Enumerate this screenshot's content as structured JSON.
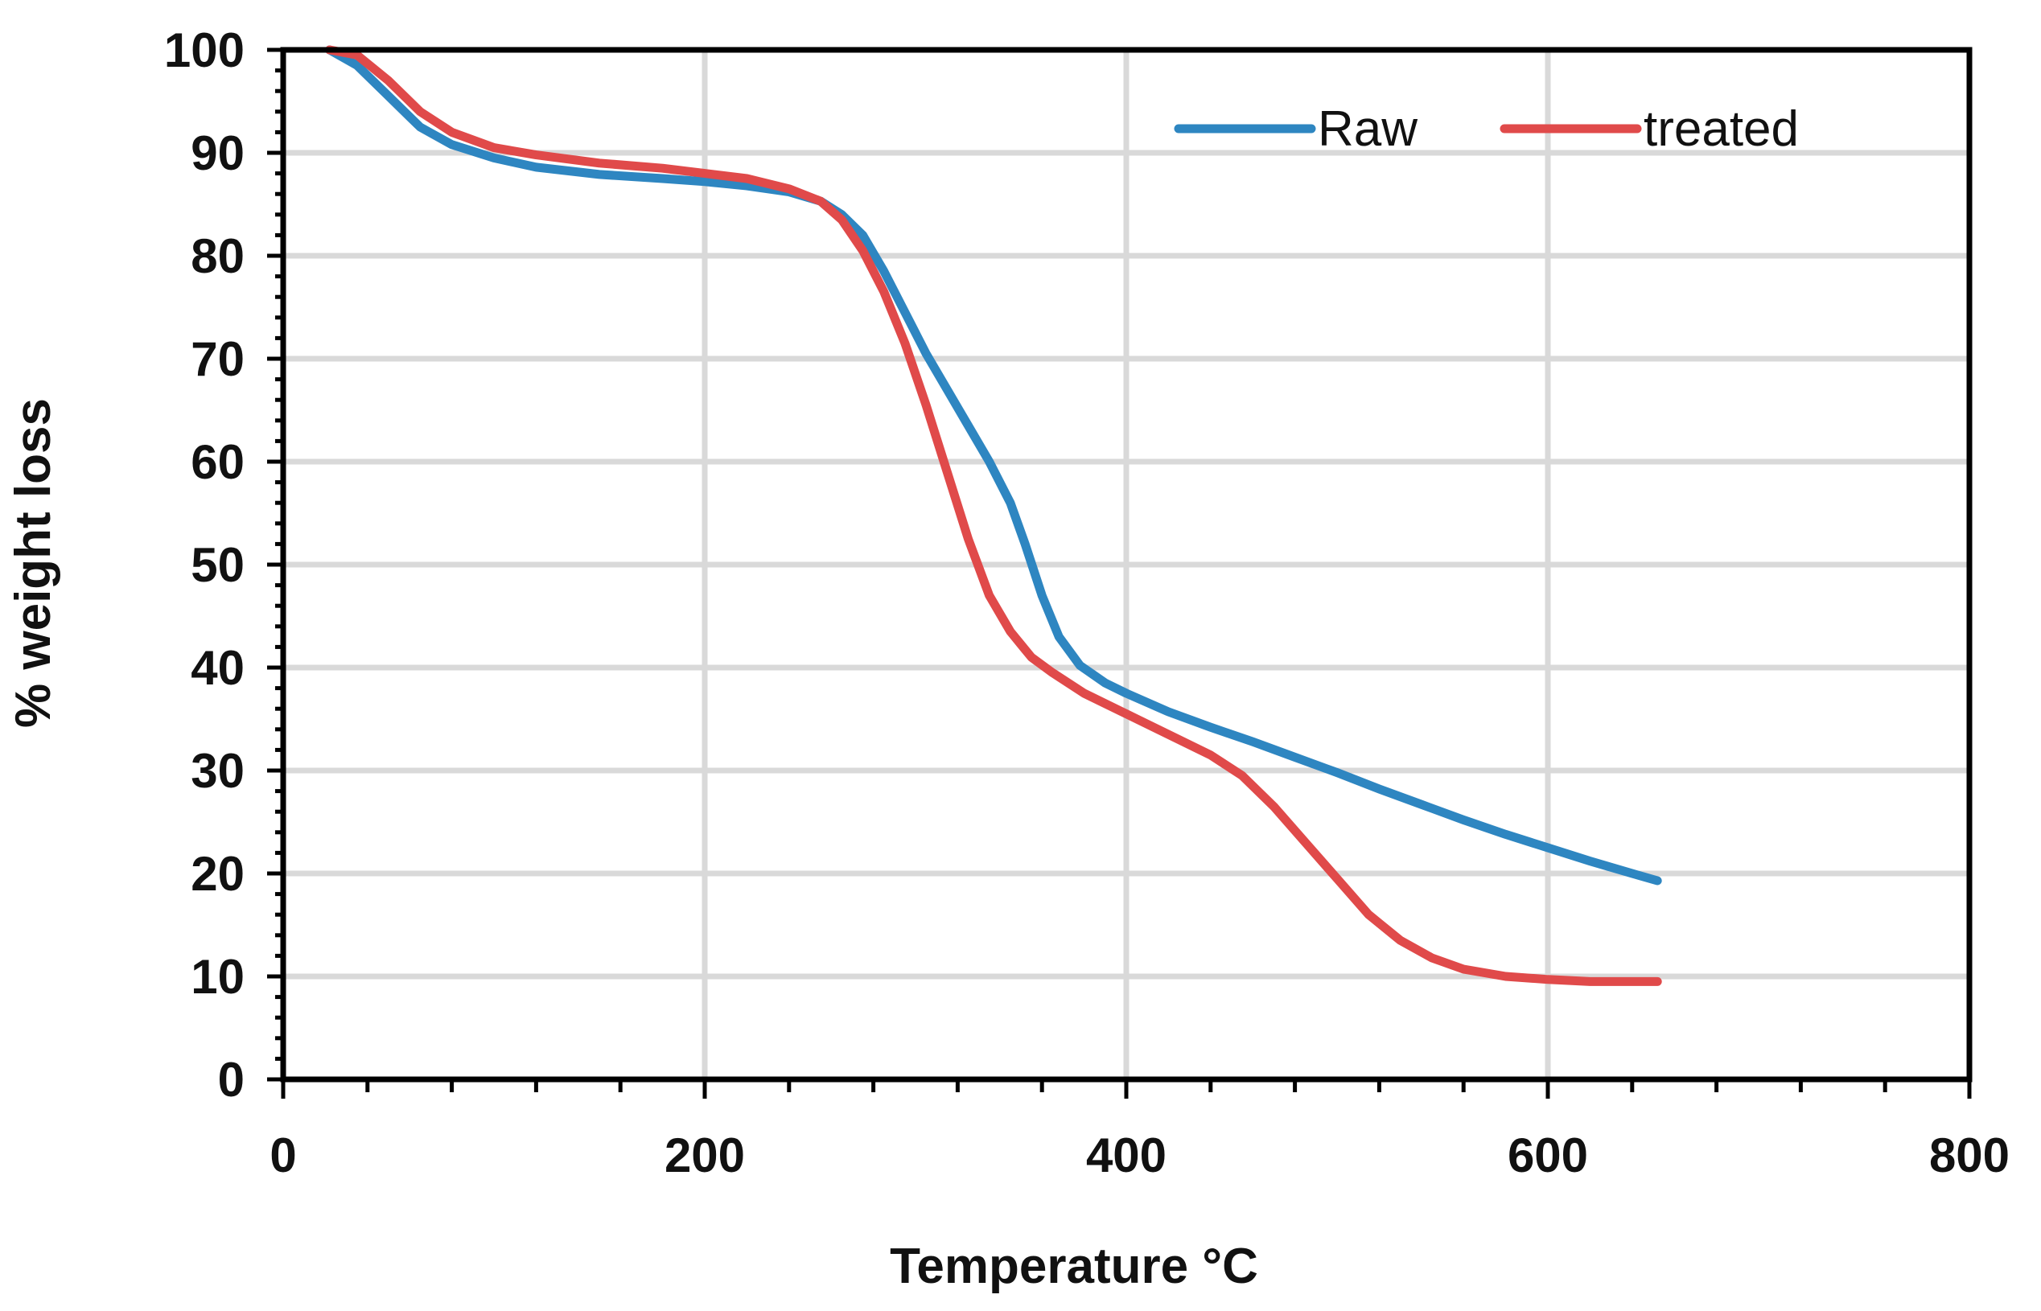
{
  "chart_data": {
    "type": "line",
    "title": "",
    "xlabel": "Temperature °C",
    "ylabel": "% weight loss",
    "xlim": [
      0,
      800
    ],
    "ylim": [
      0,
      100
    ],
    "x_ticks": [
      0,
      200,
      400,
      600,
      800
    ],
    "y_ticks": [
      0,
      10,
      20,
      30,
      40,
      50,
      60,
      70,
      80,
      90,
      100
    ],
    "x_tick_labels": [
      "0",
      "200",
      "400",
      "600",
      "800"
    ],
    "y_tick_labels": [
      "0",
      "10",
      "20",
      "30",
      "40",
      "50",
      "60",
      "70",
      "80",
      "90",
      "100"
    ],
    "grid": true,
    "legend_position": "top-right",
    "series": [
      {
        "name": "Raw",
        "color": "#2e86c1",
        "x": [
          22,
          35,
          50,
          65,
          80,
          100,
          120,
          150,
          180,
          200,
          220,
          240,
          255,
          265,
          275,
          285,
          295,
          305,
          315,
          325,
          335,
          345,
          352,
          360,
          368,
          378,
          390,
          400,
          420,
          440,
          460,
          480,
          500,
          520,
          540,
          560,
          580,
          600,
          620,
          640,
          652
        ],
        "y": [
          100,
          98.5,
          95.5,
          92.5,
          90.8,
          89.5,
          88.6,
          87.9,
          87.5,
          87.2,
          86.8,
          86.2,
          85.3,
          84,
          82,
          78.5,
          74.5,
          70.5,
          67,
          63.5,
          60,
          56,
          52,
          47,
          43,
          40.2,
          38.5,
          37.5,
          35.7,
          34.2,
          32.8,
          31.3,
          29.8,
          28.2,
          26.7,
          25.2,
          23.8,
          22.5,
          21.2,
          20,
          19.3
        ]
      },
      {
        "name": "treated",
        "color": "#e04a4a",
        "x": [
          22,
          35,
          50,
          65,
          80,
          100,
          120,
          150,
          180,
          200,
          220,
          240,
          255,
          265,
          275,
          285,
          295,
          305,
          315,
          325,
          335,
          345,
          355,
          365,
          380,
          400,
          420,
          440,
          455,
          470,
          485,
          500,
          515,
          530,
          545,
          560,
          580,
          600,
          620,
          640,
          652
        ],
        "y": [
          100,
          99.5,
          97,
          94,
          92,
          90.5,
          89.8,
          89,
          88.5,
          88,
          87.5,
          86.5,
          85.3,
          83.5,
          80.5,
          76.5,
          71.5,
          65.5,
          59,
          52.5,
          47,
          43.5,
          41,
          39.5,
          37.5,
          35.5,
          33.5,
          31.5,
          29.5,
          26.5,
          23,
          19.5,
          16,
          13.5,
          11.8,
          10.7,
          10,
          9.7,
          9.5,
          9.5,
          9.5
        ]
      }
    ]
  }
}
